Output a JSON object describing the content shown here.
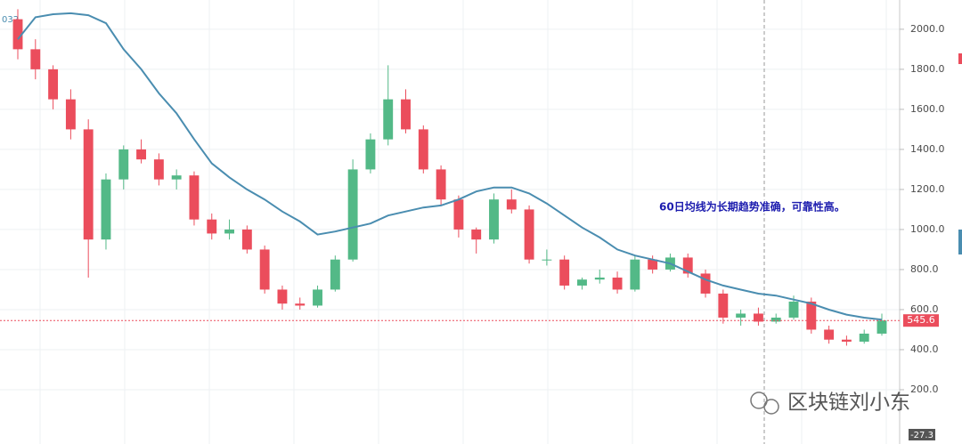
{
  "chart_data": {
    "type": "candlestick",
    "open": [
      2050,
      1900,
      1800,
      1650,
      1500,
      950,
      1250,
      1400,
      1350,
      1250,
      1270,
      1050,
      980,
      1000,
      900,
      700,
      630,
      620,
      700,
      850,
      1300,
      1450,
      1650,
      1500,
      1300,
      1150,
      1000,
      950,
      1150,
      1100,
      850,
      850,
      720,
      750,
      760,
      700,
      850,
      800,
      860,
      780,
      680,
      560,
      580,
      540,
      560,
      640,
      500,
      450,
      440,
      480
    ],
    "high": [
      2100,
      1950,
      1820,
      1700,
      1550,
      1280,
      1420,
      1450,
      1380,
      1300,
      1290,
      1080,
      1050,
      1020,
      920,
      720,
      660,
      720,
      870,
      1350,
      1480,
      1820,
      1700,
      1520,
      1320,
      1170,
      1010,
      1180,
      1200,
      1120,
      900,
      870,
      760,
      800,
      790,
      870,
      870,
      880,
      880,
      800,
      700,
      600,
      610,
      580,
      670,
      660,
      520,
      470,
      500,
      580
    ],
    "low": [
      1850,
      1750,
      1600,
      1450,
      760,
      900,
      1200,
      1330,
      1220,
      1200,
      1020,
      950,
      950,
      880,
      680,
      600,
      600,
      610,
      690,
      840,
      1280,
      1420,
      1480,
      1280,
      1120,
      960,
      880,
      930,
      1080,
      830,
      820,
      700,
      700,
      730,
      680,
      690,
      780,
      790,
      760,
      660,
      530,
      520,
      520,
      530,
      550,
      480,
      430,
      420,
      430,
      470
    ],
    "close": [
      1900,
      1800,
      1650,
      1500,
      950,
      1250,
      1400,
      1350,
      1250,
      1270,
      1050,
      980,
      1000,
      900,
      700,
      630,
      620,
      700,
      850,
      1300,
      1450,
      1650,
      1500,
      1300,
      1150,
      1000,
      950,
      1150,
      1100,
      850,
      850,
      720,
      750,
      760,
      700,
      850,
      800,
      860,
      780,
      680,
      560,
      580,
      540,
      560,
      640,
      500,
      450,
      440,
      480,
      545.6
    ],
    "up_color": "#53b987",
    "down_color": "#eb4d5c",
    "moving_average": {
      "color": "#4a8db0",
      "values": [
        1950,
        2060,
        2075,
        2080,
        2070,
        2030,
        1900,
        1800,
        1680,
        1580,
        1450,
        1330,
        1260,
        1200,
        1150,
        1090,
        1040,
        975,
        990,
        1010,
        1030,
        1070,
        1090,
        1110,
        1120,
        1150,
        1190,
        1210,
        1210,
        1180,
        1130,
        1070,
        1010,
        960,
        900,
        870,
        850,
        830,
        790,
        750,
        720,
        700,
        680,
        670,
        650,
        630,
        600,
        575,
        560,
        550
      ]
    },
    "ylim": [
      -20,
      2146
    ],
    "yticks": [
      {
        "value": 200,
        "label": "200.0"
      },
      {
        "value": 400,
        "label": "400.0"
      },
      {
        "value": 600,
        "label": "600.0"
      },
      {
        "value": 800,
        "label": "800.0"
      },
      {
        "value": 1000,
        "label": "1000.0"
      },
      {
        "value": 1200,
        "label": "1200.0"
      },
      {
        "value": 1400,
        "label": "1400.0"
      },
      {
        "value": 1600,
        "label": "1600.0"
      },
      {
        "value": 1800,
        "label": "1800.0"
      },
      {
        "value": 2000,
        "label": "2000.0"
      }
    ],
    "grid": true,
    "annotation": "60日均线为长期趋势准确，可靠性高。",
    "corner_label": "032",
    "indicator_value": -27.3,
    "watermark": "区块链刘小东"
  }
}
